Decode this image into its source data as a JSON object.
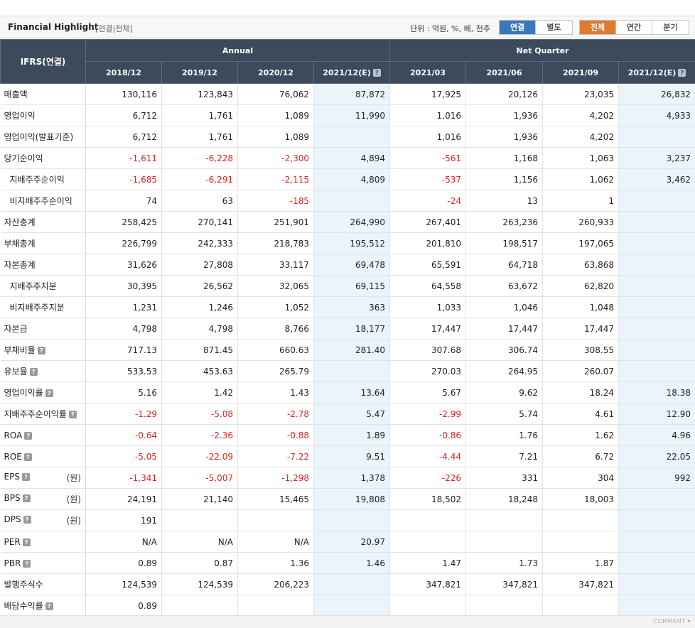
{
  "header": {
    "title": "Financial Highlight",
    "subtitle": "[연결|전체]",
    "unit": "단위 : 억원, %, 배, 천주",
    "basis_toggle": [
      "연결",
      "별도"
    ],
    "basis_selected": "연결",
    "period_toggle": [
      "전체",
      "연간",
      "분기"
    ],
    "period_selected": "전체"
  },
  "table": {
    "corner": "IFRS(연결)",
    "group_annual": "Annual",
    "group_quarter": "Net Quarter",
    "columns": [
      "2018/12",
      "2019/12",
      "2020/12",
      "2021/12(E)",
      "2021/03",
      "2021/06",
      "2021/09",
      "2021/12(E)"
    ],
    "rows": [
      {
        "label": "매출액",
        "values": [
          "130,116",
          "123,843",
          "76,062",
          "87,872",
          "17,925",
          "20,126",
          "23,035",
          "26,832"
        ]
      },
      {
        "label": "영업이익",
        "values": [
          "6,712",
          "1,761",
          "1,089",
          "11,990",
          "1,016",
          "1,936",
          "4,202",
          "4,933"
        ]
      },
      {
        "label": "영업이익(발표기준)",
        "values": [
          "6,712",
          "1,761",
          "1,089",
          "",
          "1,016",
          "1,936",
          "4,202",
          ""
        ]
      },
      {
        "label": "당기순이익",
        "values": [
          "-1,611",
          "-6,228",
          "-2,300",
          "4,894",
          "-561",
          "1,168",
          "1,063",
          "3,237"
        ]
      },
      {
        "label": "지배주주순이익",
        "indent": true,
        "values": [
          "-1,685",
          "-6,291",
          "-2,115",
          "4,809",
          "-537",
          "1,156",
          "1,062",
          "3,462"
        ]
      },
      {
        "label": "비지배주주순이익",
        "indent": true,
        "values": [
          "74",
          "63",
          "-185",
          "",
          "-24",
          "13",
          "1",
          ""
        ]
      },
      {
        "label": "자산총계",
        "values": [
          "258,425",
          "270,141",
          "251,901",
          "264,990",
          "267,401",
          "263,236",
          "260,933",
          ""
        ]
      },
      {
        "label": "부채총계",
        "values": [
          "226,799",
          "242,333",
          "218,783",
          "195,512",
          "201,810",
          "198,517",
          "197,065",
          ""
        ]
      },
      {
        "label": "자본총계",
        "values": [
          "31,626",
          "27,808",
          "33,117",
          "69,478",
          "65,591",
          "64,718",
          "63,868",
          ""
        ]
      },
      {
        "label": "지배주주지분",
        "indent": true,
        "values": [
          "30,395",
          "26,562",
          "32,065",
          "69,115",
          "64,558",
          "63,672",
          "62,820",
          ""
        ]
      },
      {
        "label": "비지배주주지분",
        "indent": true,
        "values": [
          "1,231",
          "1,246",
          "1,052",
          "363",
          "1,033",
          "1,046",
          "1,048",
          ""
        ]
      },
      {
        "label": "자본금",
        "values": [
          "4,798",
          "4,798",
          "8,766",
          "18,177",
          "17,447",
          "17,447",
          "17,447",
          ""
        ]
      },
      {
        "label": "부채비율",
        "help": true,
        "values": [
          "717.13",
          "871.45",
          "660.63",
          "281.40",
          "307.68",
          "306.74",
          "308.55",
          ""
        ]
      },
      {
        "label": "유보율",
        "help": true,
        "values": [
          "533.53",
          "453.63",
          "265.79",
          "",
          "270.03",
          "264.95",
          "260.07",
          ""
        ]
      },
      {
        "label": "영업이익률",
        "help": true,
        "values": [
          "5.16",
          "1.42",
          "1.43",
          "13.64",
          "5.67",
          "9.62",
          "18.24",
          "18.38"
        ]
      },
      {
        "label": "지배주주순이익률",
        "help": true,
        "values": [
          "-1.29",
          "-5.08",
          "-2.78",
          "5.47",
          "-2.99",
          "5.74",
          "4.61",
          "12.90"
        ]
      },
      {
        "label": "ROA",
        "help": true,
        "values": [
          "-0.64",
          "-2.36",
          "-0.88",
          "1.89",
          "-0.86",
          "1.76",
          "1.62",
          "4.96"
        ]
      },
      {
        "label": "ROE",
        "help": true,
        "values": [
          "-5.05",
          "-22.09",
          "-7.22",
          "9.51",
          "-4.44",
          "7.21",
          "6.72",
          "22.05"
        ]
      },
      {
        "label": "EPS",
        "help": true,
        "unit": "(원)",
        "values": [
          "-1,341",
          "-5,007",
          "-1,298",
          "1,378",
          "-226",
          "331",
          "304",
          "992"
        ]
      },
      {
        "label": "BPS",
        "help": true,
        "unit": "(원)",
        "values": [
          "24,191",
          "21,140",
          "15,465",
          "19,808",
          "18,502",
          "18,248",
          "18,003",
          ""
        ]
      },
      {
        "label": "DPS",
        "help": true,
        "unit": "(원)",
        "values": [
          "191",
          "",
          "",
          "",
          "",
          "",
          "",
          ""
        ]
      },
      {
        "label": "PER",
        "help": true,
        "values": [
          "N/A",
          "N/A",
          "N/A",
          "20.97",
          "",
          "",
          "",
          ""
        ]
      },
      {
        "label": "PBR",
        "help": true,
        "values": [
          "0.89",
          "0.87",
          "1.36",
          "1.46",
          "1.47",
          "1.73",
          "1.87",
          ""
        ]
      },
      {
        "label": "발행주식수",
        "values": [
          "124,539",
          "124,539",
          "206,223",
          "",
          "347,821",
          "347,821",
          "347,821",
          ""
        ]
      },
      {
        "label": "배당수익률",
        "help": true,
        "values": [
          "0.89",
          "",
          "",
          "",
          "",
          "",
          "",
          ""
        ]
      }
    ]
  },
  "footer": {
    "comment": "COMMENT ▾"
  },
  "colors": {
    "header_bg": "#3c4a5c",
    "estimate_bg": "#e9f4fb",
    "negative": "#e02020",
    "basis_on": "#3a79b8",
    "period_on": "#e07a2f"
  }
}
